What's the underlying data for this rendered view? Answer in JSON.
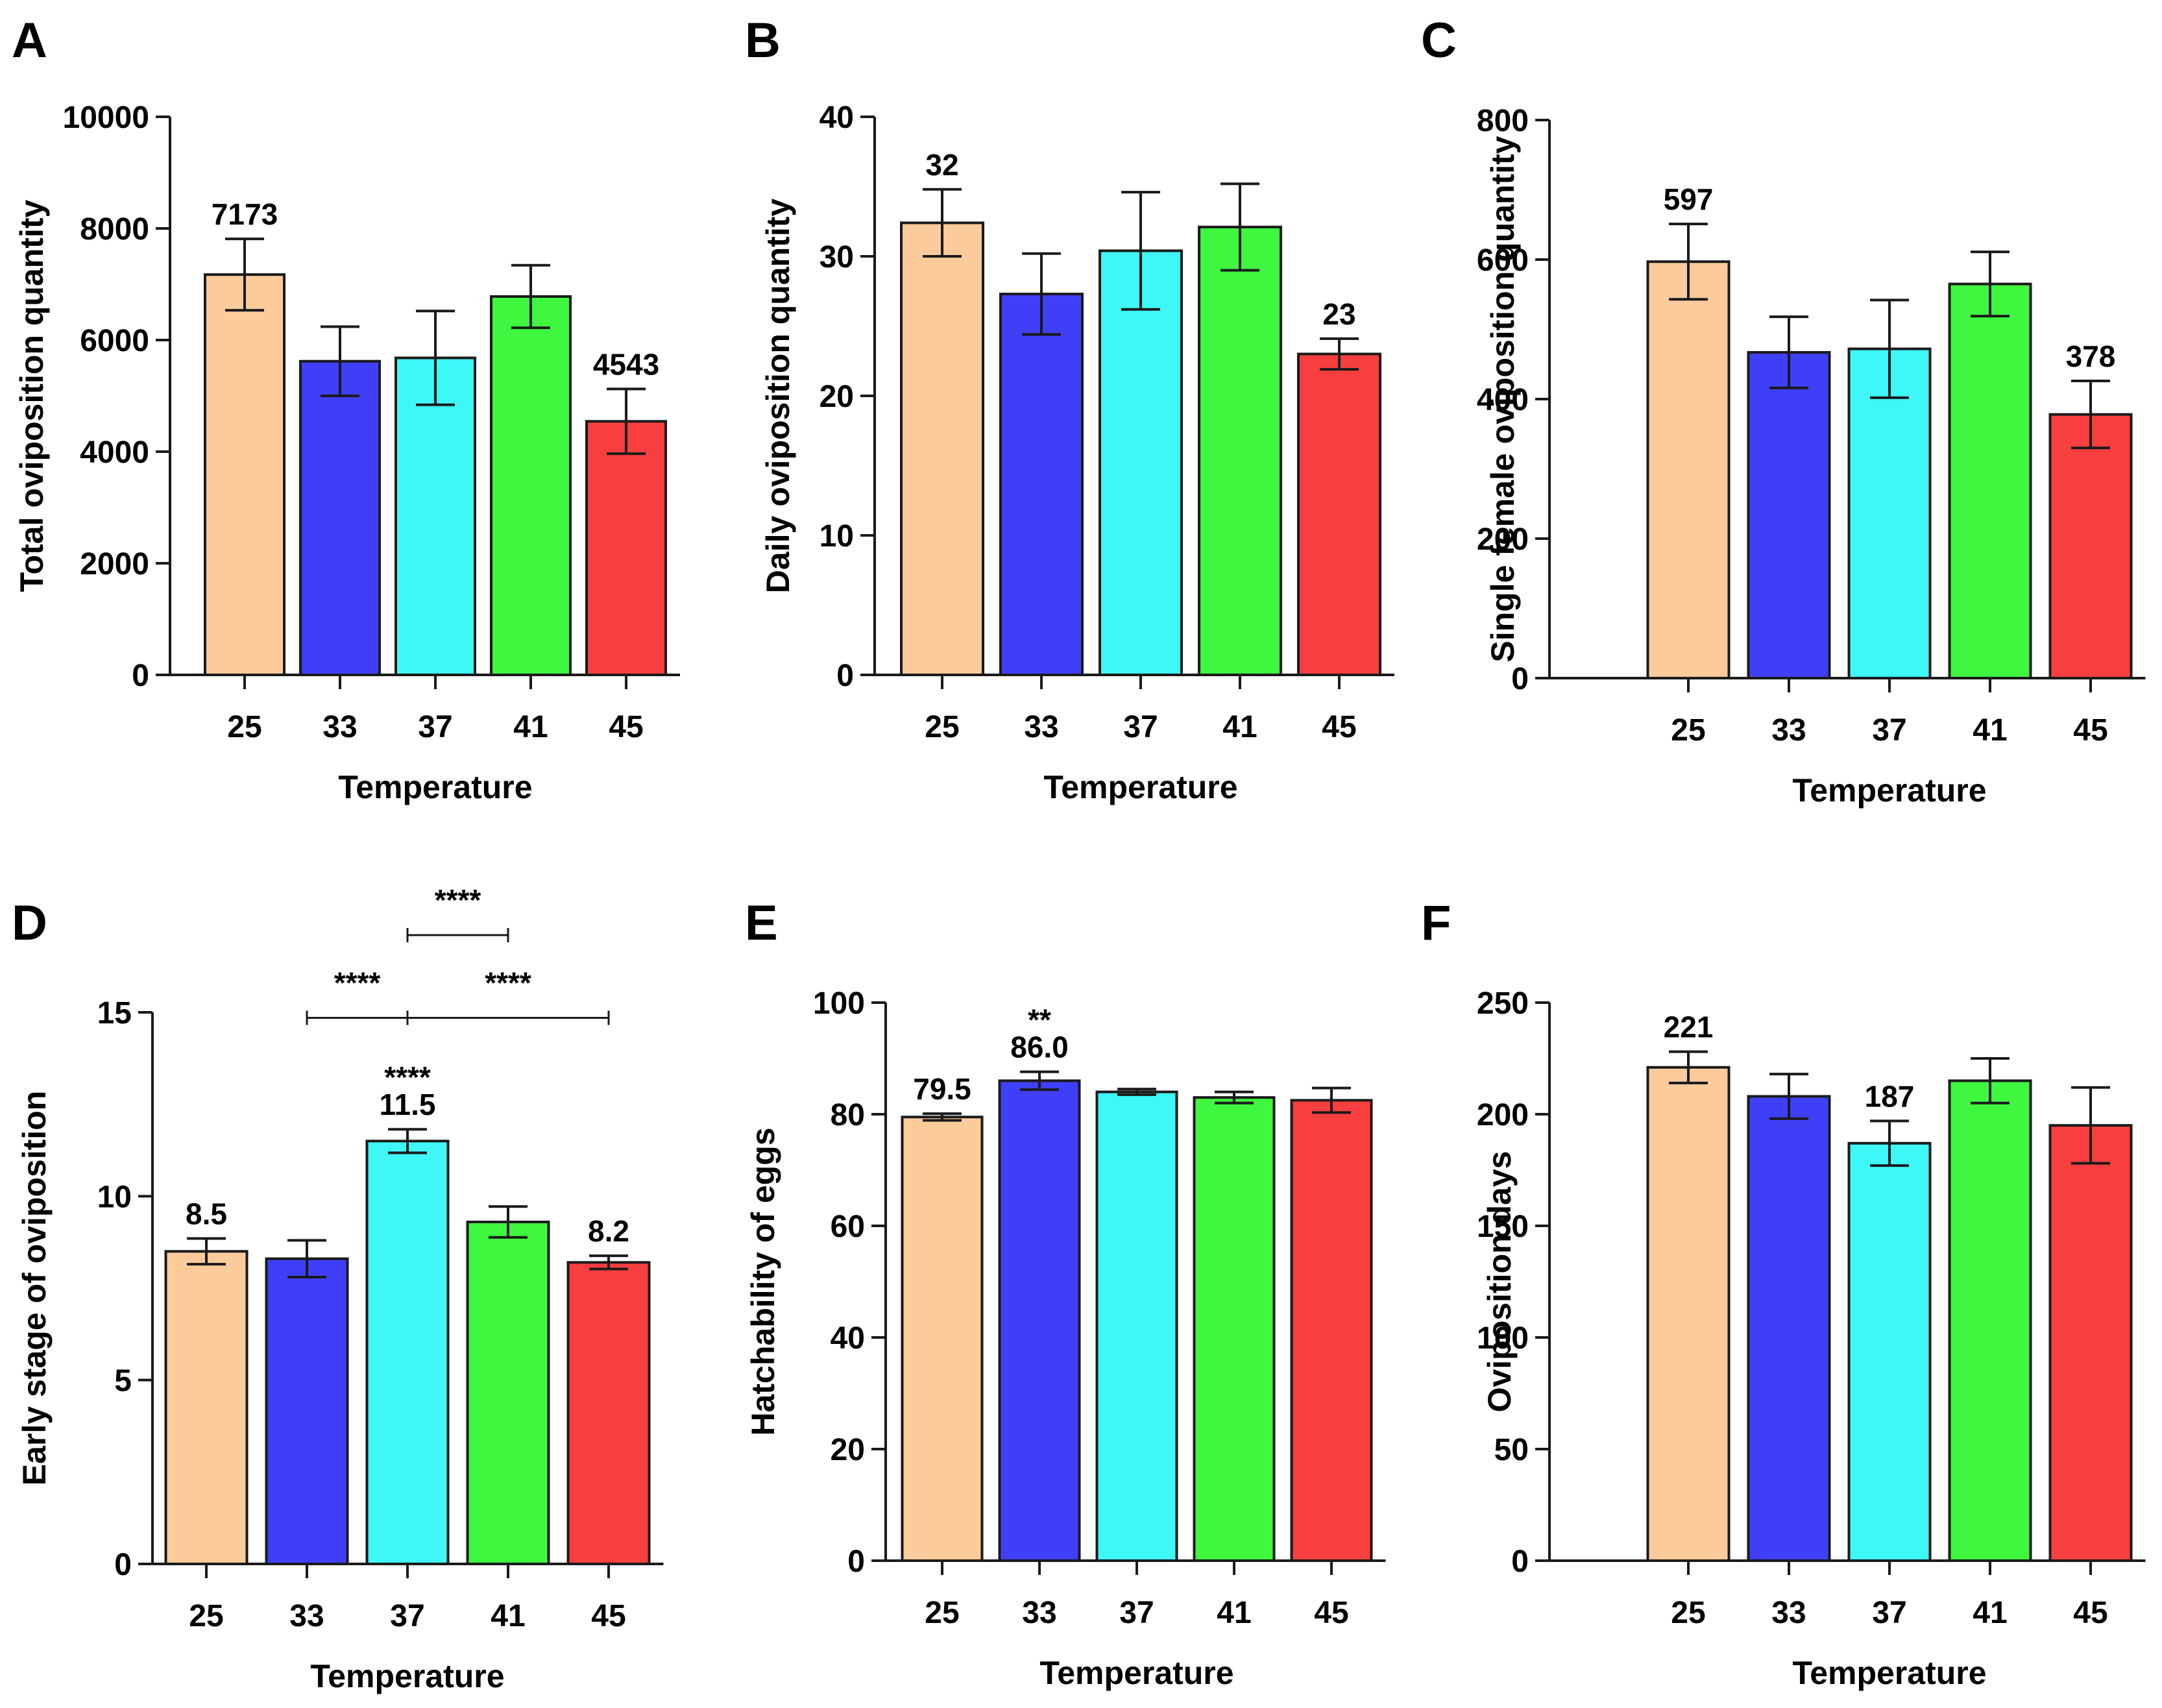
{
  "colors": {
    "bar_fills": [
      "#FCCB9C",
      "#3F3FF7",
      "#3FF7F7",
      "#3FF73F",
      "#F73F3F"
    ],
    "stroke": "#1a1a1a"
  },
  "chart_data": [
    {
      "type": "bar",
      "panel": "A",
      "xlabel": "Temperature",
      "ylabel": "Total oviposition quantity",
      "ylim": [
        0,
        10000
      ],
      "yticks": [
        "0",
        "2000",
        "4000",
        "6000",
        "8000",
        "10000"
      ],
      "ytick_values": [
        0,
        2000,
        4000,
        6000,
        8000,
        10000
      ],
      "categories": [
        "25",
        "33",
        "37",
        "41",
        "45"
      ],
      "values": [
        7173,
        5620,
        5680,
        6780,
        4543
      ],
      "errors": [
        640,
        620,
        840,
        560,
        580
      ],
      "bar_labels": [
        "7173",
        "",
        "",
        "",
        "4543"
      ],
      "brackets": []
    },
    {
      "type": "bar",
      "panel": "B",
      "xlabel": "Temperature",
      "ylabel": "Daily oviposition quantity",
      "ylim": [
        0,
        40
      ],
      "yticks": [
        "0",
        "10",
        "20",
        "30",
        "40"
      ],
      "ytick_values": [
        0,
        10,
        20,
        30,
        40
      ],
      "categories": [
        "25",
        "33",
        "37",
        "41",
        "45"
      ],
      "values": [
        32.4,
        27.3,
        30.4,
        32.1,
        23.0
      ],
      "errors": [
        2.4,
        2.9,
        4.2,
        3.1,
        1.1
      ],
      "bar_labels": [
        "32",
        "",
        "",
        "",
        "23"
      ],
      "brackets": []
    },
    {
      "type": "bar",
      "panel": "C",
      "xlabel": "Temperature",
      "ylabel": "Single female oviposition quantity",
      "ylim": [
        0,
        800
      ],
      "yticks": [
        "0",
        "200",
        "400",
        "600",
        "800"
      ],
      "ytick_values": [
        0,
        200,
        400,
        600,
        800
      ],
      "categories": [
        "25",
        "33",
        "37",
        "41",
        "45"
      ],
      "values": [
        597,
        467,
        472,
        565,
        378
      ],
      "errors": [
        54,
        51,
        70,
        46,
        48
      ],
      "bar_labels": [
        "597",
        "",
        "",
        "",
        "378"
      ],
      "brackets": []
    },
    {
      "type": "bar",
      "panel": "D",
      "xlabel": "Temperature",
      "ylabel": "Early stage of oviposition",
      "ylim": [
        0,
        15
      ],
      "yticks": [
        "0",
        "5",
        "10",
        "15"
      ],
      "ytick_values": [
        0,
        5,
        10,
        15
      ],
      "categories": [
        "25",
        "33",
        "37",
        "41",
        "45"
      ],
      "values": [
        8.5,
        8.3,
        11.5,
        9.3,
        8.2
      ],
      "errors": [
        0.35,
        0.5,
        0.32,
        0.42,
        0.18
      ],
      "bar_labels": [
        "8.5",
        "",
        "11.5",
        "",
        "8.2"
      ],
      "bar_annotations": [
        "",
        "",
        "****",
        "",
        ""
      ],
      "brackets": [
        {
          "from": 2,
          "to": 3,
          "level": 17.1,
          "label": "****"
        },
        {
          "from": 1,
          "to": 2,
          "level": 14.85,
          "label": "****"
        },
        {
          "from": 2,
          "to": 4,
          "level": 14.85,
          "label": "****"
        }
      ]
    },
    {
      "type": "bar",
      "panel": "E",
      "xlabel": "Temperature",
      "ylabel": "Hatchability of eggs",
      "ylim": [
        0,
        100
      ],
      "yticks": [
        "0",
        "20",
        "40",
        "60",
        "80",
        "100"
      ],
      "ytick_values": [
        0,
        20,
        40,
        60,
        80,
        100
      ],
      "categories": [
        "25",
        "33",
        "37",
        "41",
        "45"
      ],
      "values": [
        79.5,
        86.0,
        84.0,
        83.0,
        82.5
      ],
      "errors": [
        0.6,
        1.6,
        0.5,
        1.0,
        2.2
      ],
      "bar_labels": [
        "79.5",
        "86.0",
        "",
        "",
        ""
      ],
      "bar_annotations": [
        "",
        "**",
        "",
        "",
        ""
      ],
      "brackets": []
    },
    {
      "type": "bar",
      "panel": "F",
      "xlabel": "Temperature",
      "ylabel": "Oviposition days",
      "ylim": [
        0,
        250
      ],
      "yticks": [
        "0",
        "50",
        "100",
        "150",
        "200",
        "250"
      ],
      "ytick_values": [
        0,
        50,
        100,
        150,
        200,
        250
      ],
      "categories": [
        "25",
        "33",
        "37",
        "41",
        "45"
      ],
      "values": [
        221,
        208,
        187,
        215,
        195
      ],
      "errors": [
        7,
        10,
        10,
        10,
        17
      ],
      "bar_labels": [
        "221",
        "",
        "187",
        "",
        ""
      ],
      "brackets": []
    }
  ]
}
